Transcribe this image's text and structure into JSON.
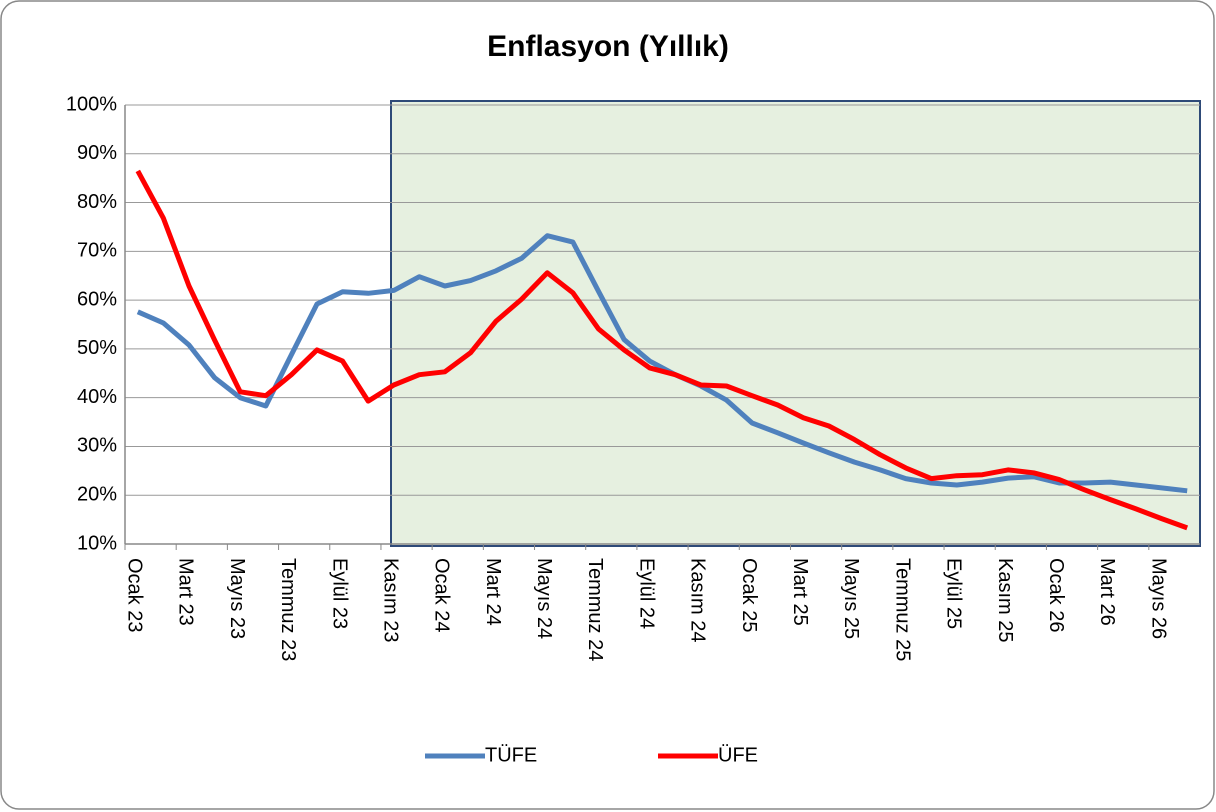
{
  "chart_data": {
    "type": "line",
    "title": "Enflasyon (Yıllık)",
    "categories": [
      "Ocak 23",
      null,
      "Mart 23",
      null,
      "Mayıs 23",
      null,
      "Temmuz 23",
      null,
      "Eylül 23",
      null,
      "Kasım 23",
      null,
      "Ocak 24",
      null,
      "Mart 24",
      null,
      "Mayıs 24",
      null,
      "Temmuz 24",
      null,
      "Eylül 24",
      null,
      "Kasım 24",
      null,
      "Ocak 25",
      null,
      "Mart 25",
      null,
      "Mayıs 25",
      null,
      "Temmuz 25",
      null,
      "Eylül 25",
      null,
      "Kasım 25",
      null,
      "Ocak 26",
      null,
      "Mart 26",
      null,
      "Mayıs 26",
      null
    ],
    "series": [
      {
        "name": "TÜFE",
        "color": "#4f81bd",
        "values": [
          57.6,
          55.3,
          50.8,
          44.1,
          40.0,
          38.3,
          48.8,
          59.2,
          61.7,
          61.4,
          62.0,
          64.8,
          62.9,
          64.0,
          66.0,
          68.6,
          73.2,
          71.9,
          61.8,
          51.9,
          47.5,
          44.7,
          42.4,
          39.5,
          34.8,
          32.8,
          30.7,
          28.7,
          26.8,
          25.2,
          23.4,
          22.5,
          22.1,
          22.7,
          23.5,
          23.8,
          22.5,
          22.5,
          22.7,
          22.1,
          21.5,
          20.9
        ]
      },
      {
        "name": "ÜFE",
        "color": "#ff0000",
        "values": [
          86.5,
          76.8,
          62.9,
          51.8,
          41.2,
          40.4,
          44.7,
          49.8,
          47.5,
          39.3,
          42.6,
          44.7,
          45.3,
          49.2,
          55.7,
          60.2,
          65.6,
          61.5,
          54.1,
          49.8,
          46.1,
          44.7,
          42.6,
          42.4,
          40.4,
          38.5,
          35.9,
          34.2,
          31.4,
          28.3,
          25.6,
          23.4,
          24.0,
          24.2,
          25.2,
          24.6,
          23.2,
          21.1,
          19.1,
          17.2,
          15.2,
          13.3
        ]
      }
    ],
    "ylim": [
      10,
      100
    ],
    "yticks": [
      {
        "value": 10,
        "label": "10%"
      },
      {
        "value": 20,
        "label": "20%"
      },
      {
        "value": 30,
        "label": "30%"
      },
      {
        "value": 40,
        "label": "40%"
      },
      {
        "value": 50,
        "label": "50%"
      },
      {
        "value": 60,
        "label": "60%"
      },
      {
        "value": 70,
        "label": "70%"
      },
      {
        "value": 80,
        "label": "80%"
      },
      {
        "value": 90,
        "label": "90%"
      },
      {
        "value": 100,
        "label": "100%"
      }
    ],
    "grid": true,
    "legend": "bottom"
  }
}
